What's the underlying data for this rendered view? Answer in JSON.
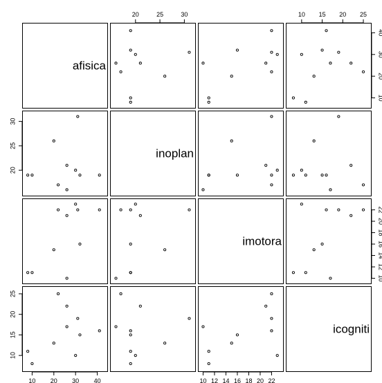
{
  "chart_data": {
    "type": "scatter",
    "variables": [
      "afisica",
      "inoplan",
      "imotora",
      "icognitiva"
    ],
    "diagonal_labels": [
      "afisica",
      "inoplan",
      "imotora",
      "icogniti"
    ],
    "ranges": {
      "afisica": [
        7,
        43
      ],
      "inoplan": [
        15.5,
        31.5
      ],
      "imotora": [
        9.7,
        23.4
      ],
      "icognitiva": [
        7,
        26
      ]
    },
    "ticks": {
      "afisica": [
        10,
        20,
        30,
        40
      ],
      "inoplan": [
        20,
        25,
        30
      ],
      "imotora": [
        10,
        12,
        14,
        16,
        18,
        20,
        22
      ],
      "icognitiva": [
        10,
        15,
        20,
        25
      ]
    },
    "observations": [
      {
        "afisica": 8,
        "inoplan": 19,
        "imotora": 11,
        "icognitiva": 11
      },
      {
        "afisica": 10,
        "inoplan": 19,
        "imotora": 11,
        "icognitiva": 8
      },
      {
        "afisica": 20,
        "inoplan": 26,
        "imotora": 15,
        "icognitiva": 13
      },
      {
        "afisica": 22,
        "inoplan": 17,
        "imotora": 22,
        "icognitiva": 25
      },
      {
        "afisica": 26,
        "inoplan": 16,
        "imotora": 10,
        "icognitiva": 17
      },
      {
        "afisica": 26,
        "inoplan": 21,
        "imotora": 21,
        "icognitiva": 22
      },
      {
        "afisica": 30,
        "inoplan": 20,
        "imotora": 23,
        "icognitiva": 10
      },
      {
        "afisica": 31,
        "inoplan": 31,
        "imotora": 22,
        "icognitiva": 19
      },
      {
        "afisica": 32,
        "inoplan": 19,
        "imotora": 16,
        "icognitiva": 15
      },
      {
        "afisica": 41,
        "inoplan": 19,
        "imotora": 22,
        "icognitiva": 16
      }
    ]
  }
}
